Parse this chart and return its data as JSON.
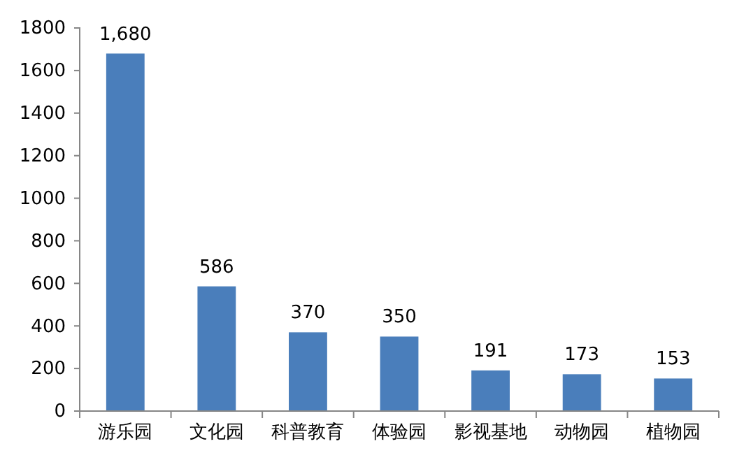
{
  "chart_data": {
    "type": "bar",
    "categories": [
      "游乐园",
      "文化园",
      "科普教育",
      "体验园",
      "影视基地",
      "动物园",
      "植物园"
    ],
    "values": [
      1680,
      586,
      370,
      350,
      191,
      173,
      153
    ],
    "value_labels": [
      "1,680",
      "586",
      "370",
      "350",
      "191",
      "173",
      "153"
    ],
    "color": "#4a7ebb",
    "ylim": [
      0,
      1800
    ],
    "yticks": [
      0,
      200,
      400,
      600,
      800,
      1000,
      1200,
      1400,
      1600,
      1800
    ],
    "grid": false
  }
}
